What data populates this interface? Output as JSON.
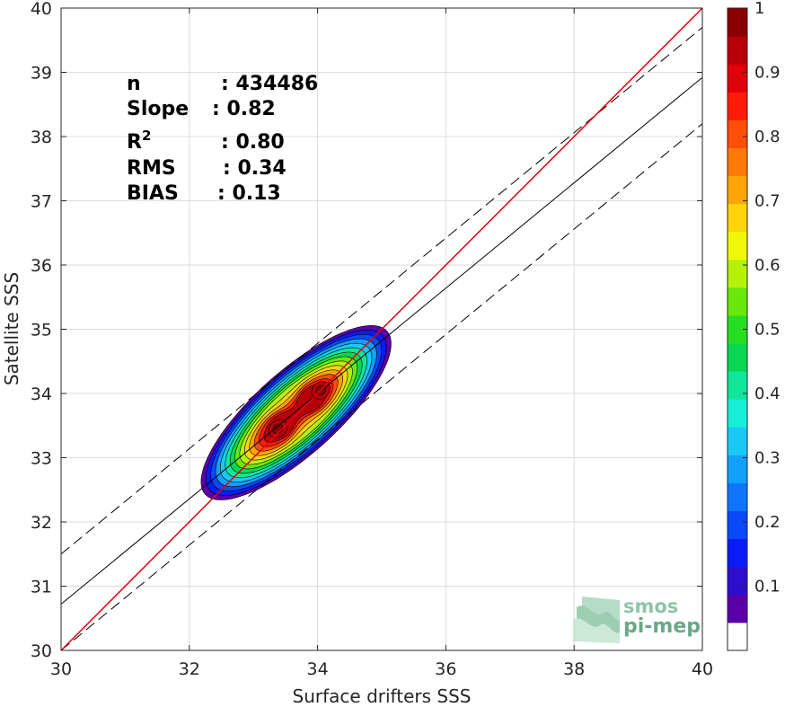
{
  "chart_data": {
    "type": "scatter",
    "subtype": "density-contour",
    "xlabel": "Surface drifters SSS",
    "ylabel": "Satellite SSS",
    "xlim": [
      30,
      40
    ],
    "ylim": [
      30,
      40
    ],
    "xticks": [
      30,
      32,
      34,
      36,
      38,
      40
    ],
    "yticks": [
      30,
      31,
      32,
      33,
      34,
      35,
      36,
      37,
      38,
      39,
      40
    ],
    "grid": true,
    "stats": [
      {
        "label": "n",
        "value": ": 434486"
      },
      {
        "label": "Slope",
        "value": ": 0.82"
      },
      {
        "label": "R",
        "sup": "2",
        "value": ": 0.80"
      },
      {
        "label": "RMS",
        "value": ": 0.34"
      },
      {
        "label": "BIAS",
        "value": ": 0.13"
      }
    ],
    "lines": {
      "identity": {
        "x": [
          30,
          40
        ],
        "y": [
          30,
          40
        ],
        "color": "#e8000b"
      },
      "regression": {
        "x": [
          30,
          40
        ],
        "y": [
          30.72,
          38.92
        ],
        "color": "#000000"
      },
      "upper_bound": {
        "x": [
          30,
          40
        ],
        "y": [
          31.5,
          39.7
        ],
        "color": "#000000",
        "style": "dashed"
      },
      "lower_bound": {
        "x": [
          30,
          40
        ],
        "y": [
          30.0,
          38.2
        ],
        "color": "#000000",
        "style": "dashed"
      }
    },
    "density_peaks": [
      {
        "x": 33.38,
        "y": 33.45,
        "value": 1.0
      },
      {
        "x": 34.05,
        "y": 34.05,
        "value": 0.97
      }
    ],
    "colorbar": {
      "ticks": [
        0.1,
        0.2,
        0.3,
        0.4,
        0.5,
        0.6,
        0.7,
        0.8,
        0.9,
        1
      ],
      "tick_labels": [
        "0.1",
        "0.2",
        "0.3",
        "0.4",
        "0.5",
        "0.6",
        "0.7",
        "0.8",
        "0.9",
        "1"
      ],
      "range": [
        0.0,
        1.0
      ],
      "colors": [
        "#ffffff",
        "#5a00a8",
        "#2e0ecd",
        "#0a1cf5",
        "#0a48fa",
        "#0f75fa",
        "#13a0fa",
        "#1bc8f4",
        "#17eed6",
        "#10e79b",
        "#0bd653",
        "#27dd22",
        "#6ae80d",
        "#b4f20a",
        "#f0f80a",
        "#ffd40a",
        "#ffa50a",
        "#ff7a0a",
        "#ff4d0a",
        "#ff1a0a",
        "#e0000a",
        "#b8000a",
        "#8a0000"
      ]
    }
  },
  "logo": {
    "line1": "smos",
    "line2": "pi-mep"
  }
}
